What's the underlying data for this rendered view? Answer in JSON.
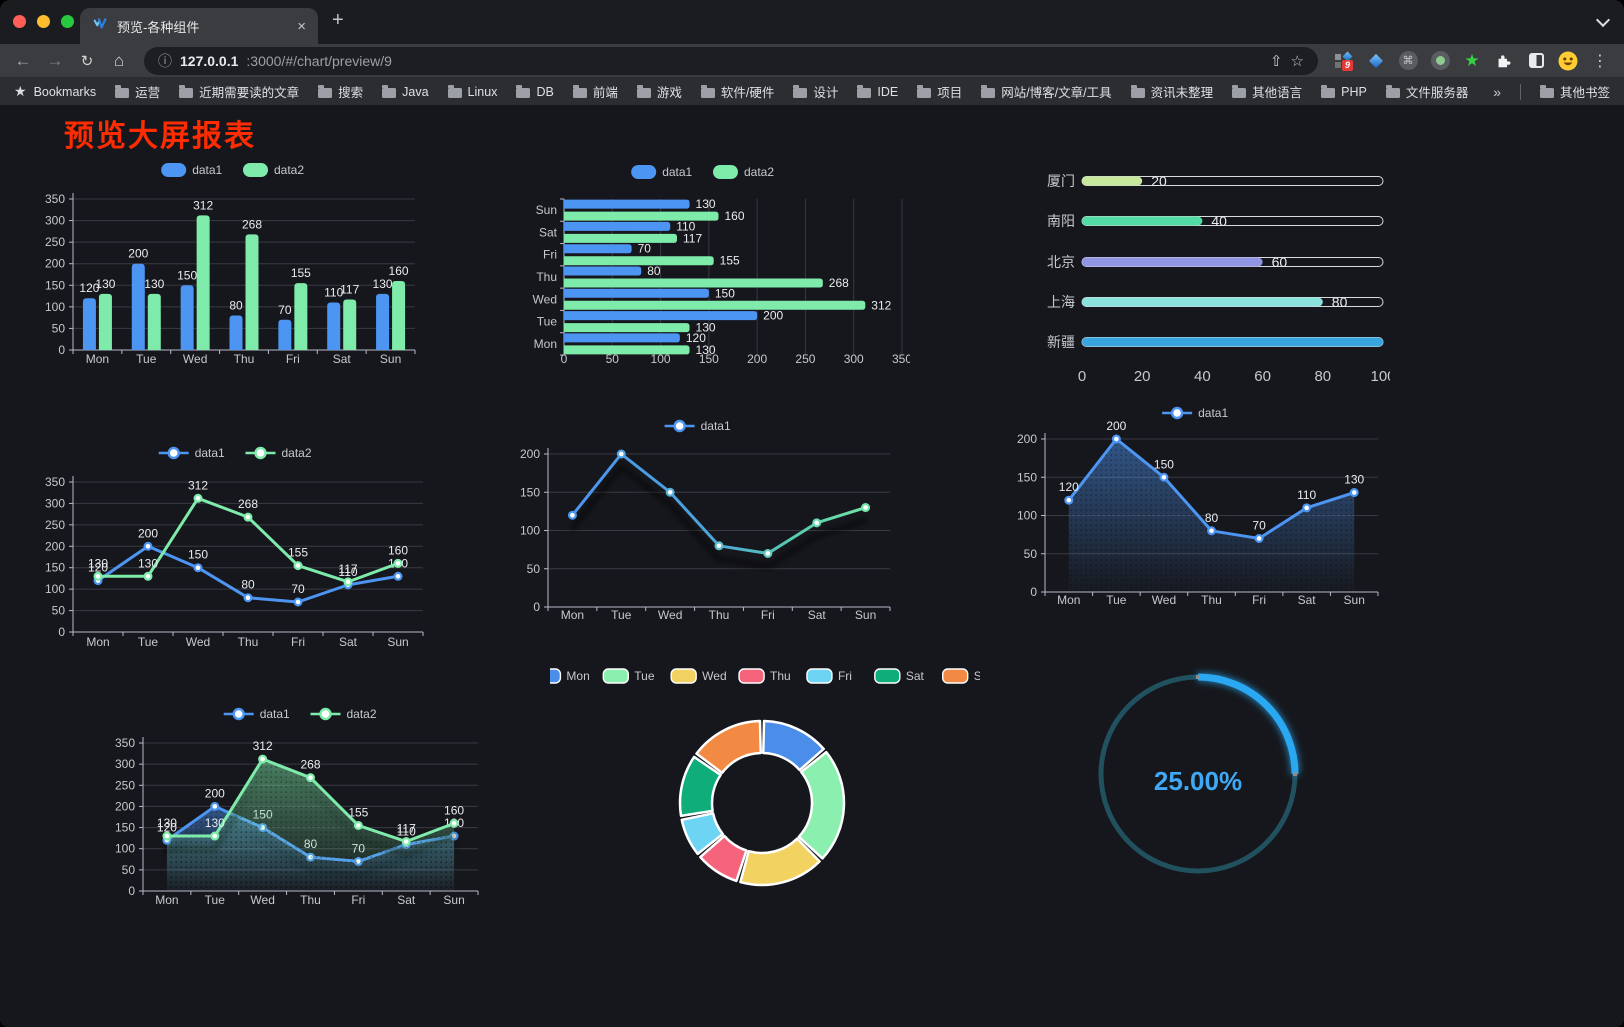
{
  "browser": {
    "window_controls": {
      "close_color": "#FF5F57",
      "minimize_color": "#FEBC2E",
      "zoom_color": "#28C840"
    },
    "tab": {
      "title": "预览-各种组件",
      "close_glyph": "×"
    },
    "new_tab_glyph": "+",
    "nav": {
      "back_glyph": "←",
      "forward_glyph": "→",
      "reload_glyph": "↻",
      "home_glyph": "⌂"
    },
    "address": {
      "info_glyph": "ⓘ",
      "host": "127.0.0.1",
      "path": ":3000/#/chart/preview/9",
      "share_glyph": "⇧",
      "bookmark_glyph": "☆"
    },
    "extensions": {
      "icon_names": [
        "apps-grid-extension-icon",
        "gem-extension-icon",
        "command-extension-icon",
        "record-extension-icon",
        "star-extension-icon",
        "extensions-puzzle-icon",
        "contrast-extension-icon",
        "profile-avatar",
        "menu-dots-icon"
      ],
      "apps_badge": "9",
      "command_glyph": "⌘",
      "star_glyph": "★",
      "menu_glyph": "⋮"
    },
    "bookmarks": {
      "star_glyph": "★",
      "label": "Bookmarks",
      "items": [
        "运营",
        "近期需要读的文章",
        "搜索",
        "Java",
        "Linux",
        "DB",
        "前端",
        "游戏",
        "软件/硬件",
        "设计",
        "IDE",
        "项目",
        "网站/博客/文章/工具",
        "资讯未整理",
        "其他语言",
        "PHP",
        "文件服务器"
      ],
      "overflow_glyph": "»",
      "other_label": "其他书签"
    }
  },
  "page": {
    "title": "预览大屏报表",
    "title_color": "#FE2C00"
  },
  "chart_data": [
    {
      "id": "grouped-bar",
      "type": "bar",
      "orientation": "vertical",
      "title": "",
      "categories": [
        "Mon",
        "Tue",
        "Wed",
        "Thu",
        "Fri",
        "Sat",
        "Sun"
      ],
      "series": [
        {
          "name": "data1",
          "color": "#4D95F2",
          "values": [
            120,
            200,
            150,
            80,
            70,
            110,
            130
          ]
        },
        {
          "name": "data2",
          "color": "#7FEBAB",
          "values": [
            130,
            130,
            312,
            268,
            155,
            117,
            160
          ]
        }
      ],
      "ylim": [
        0,
        350
      ],
      "ytick": 50,
      "yticks": [
        0,
        50,
        100,
        150,
        200,
        250,
        300,
        350
      ],
      "legend": [
        "data1",
        "data2"
      ],
      "legend_position": "top",
      "grid": true,
      "value_labels": true
    },
    {
      "id": "grouped-horizontal-bar",
      "type": "bar",
      "orientation": "horizontal",
      "title": "",
      "categories": [
        "Mon",
        "Tue",
        "Wed",
        "Thu",
        "Fri",
        "Sat",
        "Sun"
      ],
      "category_order_top_to_bottom": [
        "Sun",
        "Sat",
        "Fri",
        "Thu",
        "Wed",
        "Tue",
        "Mon"
      ],
      "series": [
        {
          "name": "data1",
          "color": "#4D95F2",
          "values": [
            120,
            200,
            150,
            80,
            70,
            110,
            130
          ]
        },
        {
          "name": "data2",
          "color": "#7FEBAB",
          "values": [
            130,
            130,
            312,
            268,
            155,
            117,
            160
          ]
        }
      ],
      "xlim": [
        0,
        350
      ],
      "xticks": [
        0,
        50,
        100,
        150,
        200,
        250,
        300,
        350
      ],
      "legend": [
        "data1",
        "data2"
      ],
      "legend_position": "top",
      "grid": true,
      "value_labels": true
    },
    {
      "id": "capsule-progress-bars",
      "type": "bar",
      "subtype": "progress",
      "title": "",
      "categories": [
        "厦门",
        "南阳",
        "北京",
        "上海",
        "新疆"
      ],
      "values": [
        20,
        40,
        60,
        80,
        100
      ],
      "colors": [
        "#C6E79C",
        "#52DBA5",
        "#9096E4",
        "#8BE2DD",
        "#39A5DE"
      ],
      "xlim": [
        0,
        100
      ],
      "xticks": [
        0,
        20,
        40,
        60,
        80,
        100
      ],
      "value_labels": true
    },
    {
      "id": "two-series-line",
      "type": "line",
      "title": "",
      "categories": [
        "Mon",
        "Tue",
        "Wed",
        "Thu",
        "Fri",
        "Sat",
        "Sun"
      ],
      "series": [
        {
          "name": "data1",
          "color": "#4D95F2",
          "values": [
            120,
            200,
            150,
            80,
            70,
            110,
            130
          ]
        },
        {
          "name": "data2",
          "color": "#7FEBAB",
          "values": [
            130,
            130,
            312,
            268,
            155,
            117,
            160
          ]
        }
      ],
      "ylim": [
        0,
        350
      ],
      "ytick": 50,
      "yticks": [
        0,
        50,
        100,
        150,
        200,
        250,
        300,
        350
      ],
      "legend": [
        "data1",
        "data2"
      ],
      "legend_position": "top",
      "grid": true,
      "value_labels": true
    },
    {
      "id": "gradient-line",
      "type": "line",
      "title": "",
      "categories": [
        "Mon",
        "Tue",
        "Wed",
        "Thu",
        "Fri",
        "Sat",
        "Sun"
      ],
      "series": [
        {
          "name": "data1",
          "gradient": [
            "#4D95F2",
            "#72E6A6"
          ],
          "values": [
            120,
            200,
            150,
            80,
            70,
            110,
            130
          ]
        }
      ],
      "ylim": [
        0,
        200
      ],
      "ytick": 50,
      "yticks": [
        0,
        50,
        100,
        150,
        200
      ],
      "legend": [
        "data1"
      ],
      "legend_position": "top",
      "grid": true,
      "value_labels": false
    },
    {
      "id": "single-area-line",
      "type": "area",
      "title": "",
      "categories": [
        "Mon",
        "Tue",
        "Wed",
        "Thu",
        "Fri",
        "Sat",
        "Sun"
      ],
      "series": [
        {
          "name": "data1",
          "color": "#4D95F2",
          "area": true,
          "values": [
            120,
            200,
            150,
            80,
            70,
            110,
            130
          ]
        }
      ],
      "ylim": [
        0,
        200
      ],
      "ytick": 50,
      "yticks": [
        0,
        50,
        100,
        150,
        200
      ],
      "legend": [
        "data1"
      ],
      "legend_position": "top",
      "grid": true,
      "value_labels": true
    },
    {
      "id": "two-series-area-line",
      "type": "area",
      "title": "",
      "categories": [
        "Mon",
        "Tue",
        "Wed",
        "Thu",
        "Fri",
        "Sat",
        "Sun"
      ],
      "series": [
        {
          "name": "data1",
          "color": "#4D95F2",
          "area": true,
          "values": [
            120,
            200,
            150,
            80,
            70,
            110,
            130
          ]
        },
        {
          "name": "data2",
          "color": "#7FEBAB",
          "area": true,
          "values": [
            130,
            130,
            312,
            268,
            155,
            117,
            160
          ]
        }
      ],
      "ylim": [
        0,
        350
      ],
      "ytick": 50,
      "yticks": [
        0,
        50,
        100,
        150,
        200,
        250,
        300,
        350
      ],
      "legend": [
        "data1",
        "data2"
      ],
      "legend_position": "top",
      "grid": true,
      "value_labels": true
    },
    {
      "id": "donut-pie",
      "type": "pie",
      "title": "",
      "categories": [
        "Mon",
        "Tue",
        "Wed",
        "Thu",
        "Fri",
        "Sat",
        "Sun"
      ],
      "values": [
        120,
        200,
        150,
        80,
        70,
        110,
        130
      ],
      "colors": [
        "#4B8EEA",
        "#8BEFAF",
        "#F2D261",
        "#F5647A",
        "#6ED4F4",
        "#0EAD79",
        "#F28A43"
      ],
      "legend": [
        "Mon",
        "Tue",
        "Wed",
        "Thu",
        "Fri",
        "Sat",
        "Sun"
      ],
      "legend_position": "top",
      "inner_radius_ratio": 0.61,
      "slice_border_color": "#ffffff"
    },
    {
      "id": "gauge-progress",
      "type": "gauge",
      "title": "",
      "value": 25,
      "min": 0,
      "max": 100,
      "display": "25.00%",
      "progress_color": "#2BA8F2",
      "track_color": "#21505F",
      "text_color": "#3FA9F5"
    }
  ]
}
